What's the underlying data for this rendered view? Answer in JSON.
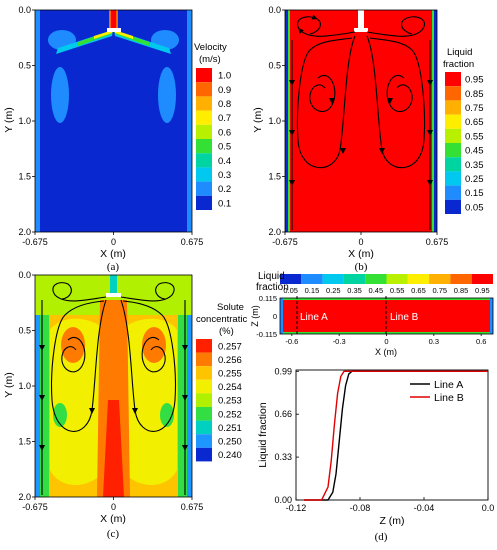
{
  "panels": {
    "a": {
      "caption": "(a)",
      "y_axis_label": "Y (m)",
      "x_axis_label": "X (m)",
      "y_ticks": [
        "0.0",
        "0.5",
        "1.0",
        "1.5",
        "2.0"
      ],
      "x_ticks": [
        "-0.675",
        "0",
        "0.675"
      ],
      "legend_title": "Velocity",
      "legend_unit": "(m/s)",
      "legend_labels": [
        "1.0",
        "0.9",
        "0.8",
        "0.7",
        "0.6",
        "0.5",
        "0.4",
        "0.3",
        "0.2",
        "0.1"
      ],
      "legend_colors": [
        "#ff0000",
        "#ff6600",
        "#ffb000",
        "#ffee00",
        "#b8f000",
        "#33e033",
        "#00d4a0",
        "#00c8ee",
        "#1e8cff",
        "#0a28d0"
      ]
    },
    "b": {
      "caption": "(b)",
      "y_axis_label": "Y (m)",
      "x_axis_label": "X (m)",
      "y_ticks": [
        "0.0",
        "0.5",
        "1.0",
        "1.5",
        "2.0"
      ],
      "x_ticks": [
        "-0.675",
        "0",
        "0.675"
      ],
      "legend_title": "Liquid",
      "legend_unit": "fraction",
      "legend_labels": [
        "0.95",
        "0.85",
        "0.75",
        "0.65",
        "0.55",
        "0.45",
        "0.35",
        "0.25",
        "0.15",
        "0.05"
      ],
      "legend_colors": [
        "#ff0000",
        "#ff6600",
        "#ffb000",
        "#ffee00",
        "#b8f000",
        "#33e033",
        "#00d4a0",
        "#00c8ee",
        "#1e8cff",
        "#0a28d0"
      ]
    },
    "c": {
      "caption": "(c)",
      "y_axis_label": "Y (m)",
      "x_axis_label": "X (m)",
      "y_ticks": [
        "0.0",
        "0.5",
        "1.0",
        "1.5",
        "2.0"
      ],
      "x_ticks": [
        "-0.675",
        "0",
        "0.675"
      ],
      "legend_title": "Solute",
      "legend_unit": "concentratic",
      "legend_unit2": "(%)",
      "legend_labels": [
        "0.257",
        "0.256",
        "0.255",
        "0.254",
        "0.253",
        "0.252",
        "0.251",
        "0.250",
        "0.240"
      ],
      "legend_colors": [
        "#ff2000",
        "#ff7a00",
        "#ffc400",
        "#f2f000",
        "#b0f000",
        "#33dd44",
        "#00d0c0",
        "#1e96ff",
        "#0a28d0"
      ]
    },
    "d_top": {
      "title_line1": "Liquid",
      "title_line2": "fraction",
      "bar_labels": [
        "0.05",
        "0.15",
        "0.25",
        "0.35",
        "0.45",
        "0.55",
        "0.65",
        "0.75",
        "0.85",
        "0.95"
      ],
      "bar_colors": [
        "#0a28d0",
        "#1e8cff",
        "#00c8ee",
        "#00d4a0",
        "#33e033",
        "#b8f000",
        "#ffee00",
        "#ffb000",
        "#ff6600",
        "#ff0000"
      ],
      "z_axis_label": "Z (m)",
      "x_axis_label": "X (m)",
      "z_ticks": [
        "0.115",
        "0",
        "-0.115"
      ],
      "x_ticks": [
        "-0.6",
        "-0.3",
        "0",
        "0.3",
        "0.6"
      ],
      "line_a_label": "Line A",
      "line_b_label": "Line B"
    },
    "d_bottom": {
      "caption": "(d)"
    }
  },
  "chart_data": {
    "type": "line",
    "xlabel": "Z  (m)",
    "ylabel": "Liquid fraction",
    "xlim": [
      -0.12,
      0.0
    ],
    "ylim": [
      0.0,
      1.0
    ],
    "x_ticks": [
      "-0.12",
      "-0.08",
      "-0.04",
      "0.0"
    ],
    "y_ticks": [
      "0.00",
      "0.33",
      "0.66",
      "0.99"
    ],
    "legend_position": "top-right",
    "series": [
      {
        "name": "Line A",
        "color": "#000000",
        "x": [
          -0.115,
          -0.106,
          -0.1,
          -0.097,
          -0.095,
          -0.093,
          -0.091,
          -0.089,
          -0.087,
          -0.085,
          -0.08,
          0.0
        ],
        "y": [
          0.0,
          0.0,
          0.0,
          0.06,
          0.2,
          0.45,
          0.7,
          0.88,
          0.97,
          0.99,
          0.99,
          0.99
        ]
      },
      {
        "name": "Line B",
        "color": "#e00000",
        "x": [
          -0.115,
          -0.11,
          -0.104,
          -0.1,
          -0.098,
          -0.096,
          -0.094,
          -0.092,
          -0.09,
          -0.088,
          -0.08,
          0.0
        ],
        "y": [
          0.0,
          0.0,
          0.0,
          0.1,
          0.3,
          0.58,
          0.82,
          0.95,
          0.99,
          0.99,
          0.99,
          0.99
        ]
      }
    ]
  }
}
